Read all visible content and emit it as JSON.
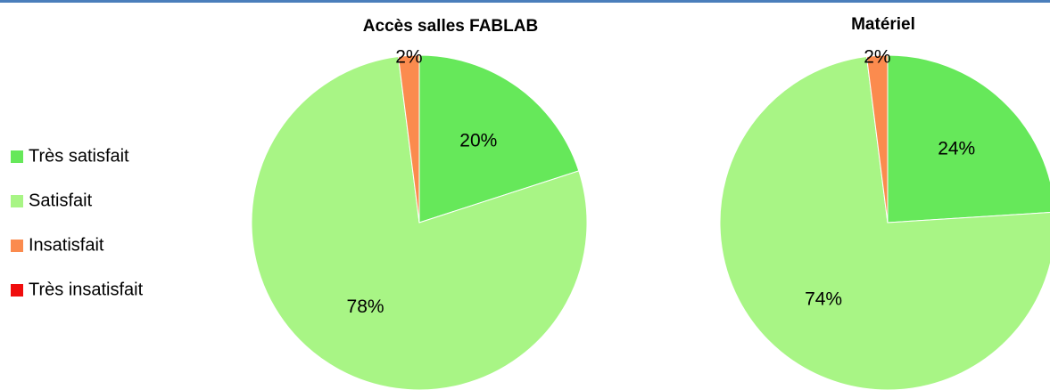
{
  "chart_data": [
    {
      "type": "pie",
      "title": "Accès salles FABLAB",
      "categories": [
        "Très satisfait",
        "Satisfait",
        "Insatisfait",
        "Très insatisfait"
      ],
      "values": [
        20,
        78,
        2,
        0
      ],
      "value_labels": [
        "20%",
        "78%",
        "2%",
        null
      ],
      "colors": [
        "#66e85a",
        "#a8f585",
        "#fb8b4e",
        "#f00d0d"
      ],
      "legend": "left"
    },
    {
      "type": "pie",
      "title": "Matériel",
      "categories": [
        "Très satisfait",
        "Satisfait",
        "Insatisfait",
        "Très insatisfait"
      ],
      "values": [
        24,
        74,
        2,
        0
      ],
      "value_labels": [
        "24%",
        "74%",
        "2%",
        null
      ],
      "colors": [
        "#66e85a",
        "#a8f585",
        "#fb8b4e",
        "#f00d0d"
      ]
    }
  ]
}
